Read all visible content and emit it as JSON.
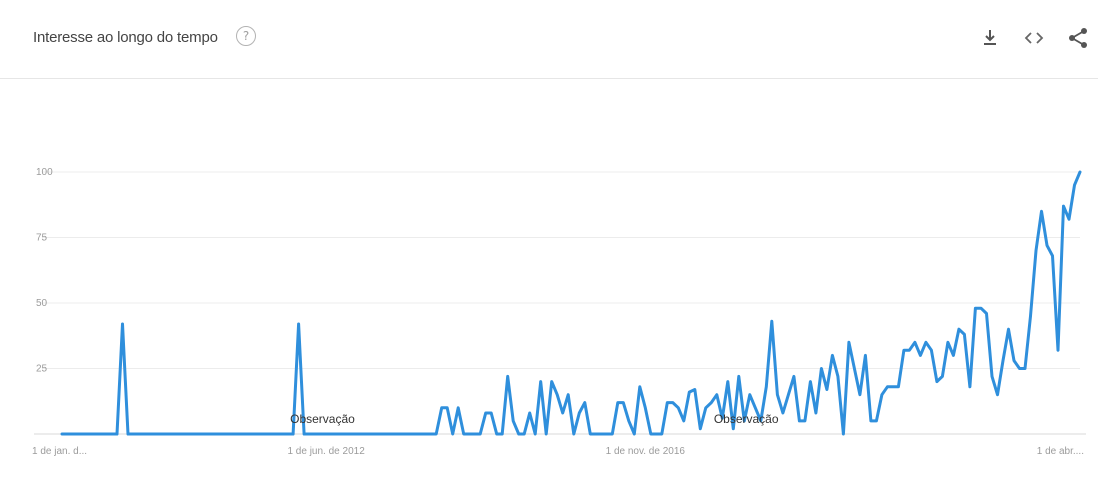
{
  "header": {
    "title": "Interesse ao longo do tempo",
    "help_icon": "question-mark",
    "actions": [
      {
        "name": "download-icon",
        "label": "download"
      },
      {
        "name": "embed-icon",
        "label": "embed"
      },
      {
        "name": "share-icon",
        "label": "share"
      }
    ]
  },
  "colors": {
    "line": "#2f8fdc",
    "grid": "#ececec",
    "axis": "#d8d8d8",
    "tick_text": "#9b9b9b"
  },
  "chart_data": {
    "type": "line",
    "title": "Interesse ao longo do tempo",
    "xlabel": "",
    "ylabel": "",
    "ylim": [
      0,
      100
    ],
    "y_ticks": [
      25,
      50,
      75,
      100
    ],
    "x_tick_labels": [
      "1 de jan. d...",
      "1 de jun. de 2012",
      "1 de nov. de 2016",
      "1 de abr...."
    ],
    "grid": true,
    "annotations": [
      {
        "text": "Observação",
        "point_index": 48
      },
      {
        "text": "Observação",
        "point_index": 125
      }
    ],
    "series": [
      {
        "values": [
          0,
          0,
          0,
          0,
          0,
          0,
          0,
          0,
          0,
          0,
          0,
          42,
          0,
          0,
          0,
          0,
          0,
          0,
          0,
          0,
          0,
          0,
          0,
          0,
          0,
          0,
          0,
          0,
          0,
          0,
          0,
          0,
          0,
          0,
          0,
          0,
          0,
          0,
          0,
          0,
          0,
          0,
          0,
          42,
          0,
          0,
          0,
          0,
          0,
          0,
          0,
          0,
          0,
          0,
          0,
          0,
          0,
          0,
          0,
          0,
          0,
          0,
          0,
          0,
          0,
          0,
          0,
          0,
          0,
          10,
          10,
          0,
          10,
          0,
          0,
          0,
          0,
          8,
          8,
          0,
          0,
          22,
          5,
          0,
          0,
          8,
          0,
          20,
          0,
          20,
          15,
          8,
          15,
          0,
          8,
          12,
          0,
          0,
          0,
          0,
          0,
          12,
          12,
          5,
          0,
          18,
          10,
          0,
          0,
          0,
          12,
          12,
          10,
          5,
          16,
          17,
          2,
          10,
          12,
          15,
          6,
          20,
          2,
          22,
          5,
          15,
          10,
          5,
          18,
          43,
          15,
          8,
          15,
          22,
          5,
          5,
          20,
          8,
          25,
          17,
          30,
          22,
          0,
          35,
          25,
          15,
          30,
          5,
          5,
          15,
          18,
          18,
          18,
          32,
          32,
          35,
          30,
          35,
          32,
          20,
          22,
          35,
          30,
          40,
          38,
          18,
          48,
          48,
          46,
          22,
          15,
          28,
          40,
          28,
          25,
          25,
          45,
          70,
          85,
          72,
          68,
          32,
          87,
          82,
          95,
          100
        ]
      }
    ]
  }
}
